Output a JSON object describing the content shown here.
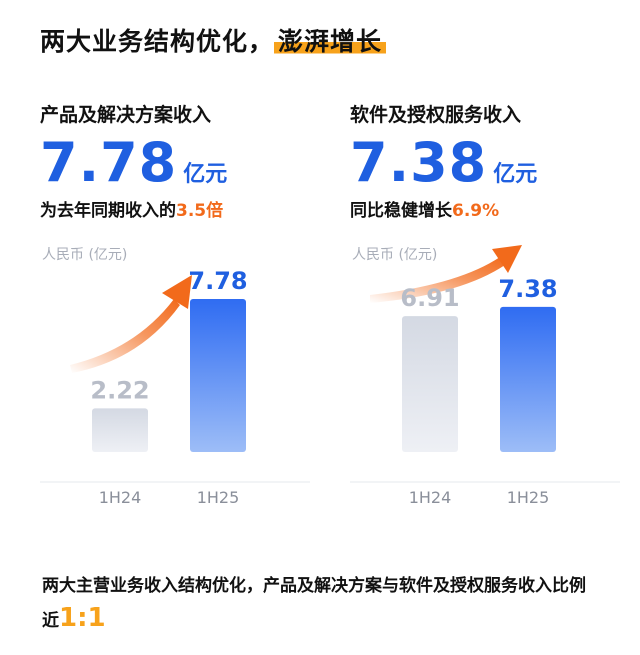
{
  "title": {
    "main": "两大业务结构优化，",
    "highlight": "澎湃增长"
  },
  "panels": [
    {
      "title": "产品及解决方案收入",
      "value": "7.78",
      "unit": "亿元",
      "sub_prefix": "为去年同期收入的",
      "sub_accent": "3.5倍",
      "sub_suffix": ""
    },
    {
      "title": "软件及授权服务收入",
      "value": "7.38",
      "unit": "亿元",
      "sub_prefix": "同比稳健增长",
      "sub_accent": "6.9%",
      "sub_suffix": ""
    }
  ],
  "bottom": {
    "text": "两大主营业务收入结构优化，产品及解决方案与软件及授权服务收入比例近",
    "ratio": "1:1"
  },
  "colors": {
    "accent_blue": "#1f5fe0",
    "accent_orange": "#f26a1b",
    "highlight": "#f7a21b",
    "gray_bar": "#d9dde6"
  },
  "chart_data": [
    {
      "type": "bar",
      "title": "",
      "ylabel": "人民币 (亿元)",
      "categories": [
        "1H24",
        "1H25"
      ],
      "values": [
        2.22,
        7.78
      ],
      "value_labels": [
        "2.22",
        "7.78"
      ],
      "ylim": [
        0,
        9
      ],
      "grid": false
    },
    {
      "type": "bar",
      "title": "",
      "ylabel": "人民币 (亿元)",
      "categories": [
        "1H24",
        "1H25"
      ],
      "values": [
        6.91,
        7.38
      ],
      "value_labels": [
        "6.91",
        "7.38"
      ],
      "ylim": [
        0,
        9
      ],
      "grid": false
    }
  ]
}
